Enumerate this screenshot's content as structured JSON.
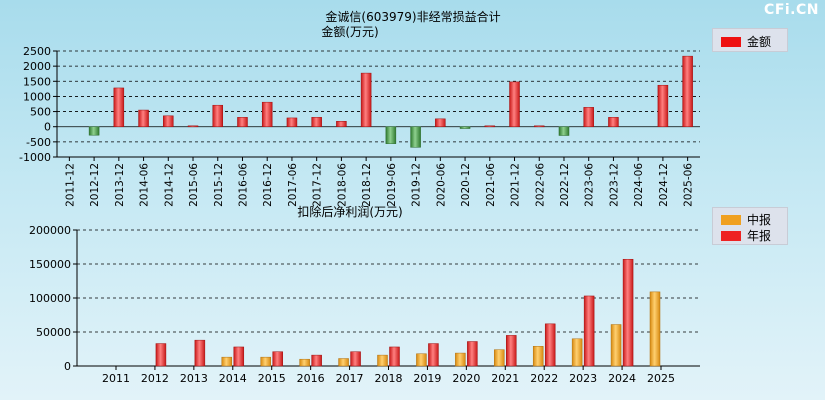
{
  "watermark": "CFi.CN",
  "chart_data": [
    {
      "type": "bar",
      "title": "金诚信(603979)非经常损益合计",
      "ylabel": "金额(万元)",
      "ylim": [
        -1000,
        2500
      ],
      "yticks": [
        2500,
        2000,
        1500,
        1000,
        500,
        0,
        -500,
        -1000
      ],
      "grid": true,
      "legend": {
        "position": "top-right",
        "entries": [
          {
            "label": "金额",
            "color": "#ee1111"
          }
        ]
      },
      "positive_color": "#dd2222",
      "negative_color": "#3f8f3f",
      "categories": [
        "2011-12",
        "2012-12",
        "2013-12",
        "2014-06",
        "2014-12",
        "2015-06",
        "2015-12",
        "2016-06",
        "2016-12",
        "2017-06",
        "2017-12",
        "2018-06",
        "2018-12",
        "2019-06",
        "2019-12",
        "2020-06",
        "2020-12",
        "2021-06",
        "2021-12",
        "2022-06",
        "2022-12",
        "2023-06",
        "2023-12",
        "2024-06",
        "2024-12",
        "2025-06"
      ],
      "values": [
        0,
        -280,
        1280,
        550,
        360,
        30,
        710,
        310,
        810,
        290,
        310,
        180,
        1770,
        -560,
        -680,
        260,
        -60,
        30,
        1480,
        30,
        -290,
        640,
        310,
        0,
        1370,
        2330
      ]
    },
    {
      "type": "bar",
      "title": "扣除后净利润(万元)",
      "ylim": [
        0,
        200000
      ],
      "yticks": [
        200000,
        150000,
        100000,
        50000,
        0
      ],
      "grid": true,
      "legend": {
        "position": "top-right"
      },
      "categories": [
        "2011",
        "2012",
        "2013",
        "2014",
        "2015",
        "2016",
        "2017",
        "2018",
        "2019",
        "2020",
        "2021",
        "2022",
        "2023",
        "2024",
        "2025"
      ],
      "series": [
        {
          "name": "中报",
          "color": "#f0a020",
          "values": [
            0,
            0,
            0,
            13000,
            13000,
            10000,
            11000,
            16000,
            18000,
            19000,
            24000,
            29000,
            40000,
            61000,
            109000
          ]
        },
        {
          "name": "年报",
          "color": "#ee2222",
          "values": [
            0,
            33000,
            38000,
            28000,
            21000,
            16000,
            21000,
            28000,
            33000,
            36000,
            45000,
            62000,
            103000,
            157000,
            null
          ]
        }
      ]
    }
  ]
}
